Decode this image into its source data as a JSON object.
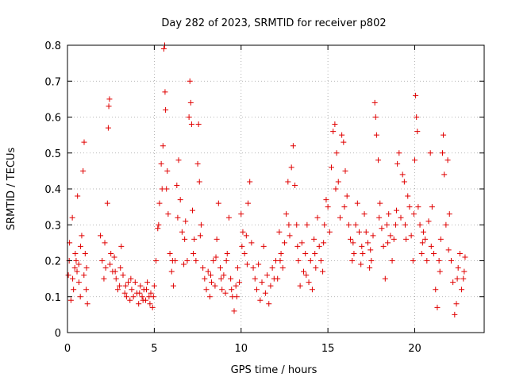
{
  "chart_data": {
    "type": "scatter",
    "title": "Day 282 of 2023, SRMTID for receiver p802",
    "xlabel": "GPS time / hours",
    "ylabel": "SRMTID / TECUs",
    "xlim": [
      0,
      24
    ],
    "ylim": [
      0,
      0.8
    ],
    "x_ticks": [
      0,
      5,
      10,
      15,
      20
    ],
    "x_tick_labels": [
      "0",
      "5",
      "10",
      "15",
      "20"
    ],
    "y_ticks": [
      0,
      0.1,
      0.2,
      0.3,
      0.4,
      0.5,
      0.6,
      0.7,
      0.8
    ],
    "y_tick_labels": [
      "0",
      "0.1",
      "0.2",
      "0.3",
      "0.4",
      "0.5",
      "0.6",
      "0.7",
      "0.8"
    ],
    "grid": true,
    "marker": "+",
    "series_color": "#e00000",
    "series": [
      {
        "name": "SRMTID",
        "points": [
          [
            0.05,
            0.16
          ],
          [
            0.12,
            0.25
          ],
          [
            0.2,
            0.09
          ],
          [
            0.28,
            0.32
          ],
          [
            0.35,
            0.12
          ],
          [
            0.42,
            0.18
          ],
          [
            0.5,
            0.2
          ],
          [
            0.58,
            0.38
          ],
          [
            0.66,
            0.14
          ],
          [
            0.74,
            0.1
          ],
          [
            0.82,
            0.27
          ],
          [
            0.9,
            0.45
          ],
          [
            0.96,
            0.53
          ],
          [
            1.02,
            0.22
          ],
          [
            1.08,
            0.12
          ],
          [
            1.15,
            0.08
          ],
          [
            0.1,
            0.2
          ],
          [
            0.3,
            0.15
          ],
          [
            0.55,
            0.17
          ],
          [
            0.75,
            0.24
          ],
          [
            0.95,
            0.16
          ],
          [
            1.1,
            0.18
          ],
          [
            0.45,
            0.22
          ],
          [
            0.65,
            0.19
          ],
          [
            1.9,
            0.27
          ],
          [
            2.0,
            0.2
          ],
          [
            2.1,
            0.15
          ],
          [
            2.2,
            0.18
          ],
          [
            2.3,
            0.36
          ],
          [
            2.35,
            0.57
          ],
          [
            2.38,
            0.63
          ],
          [
            2.42,
            0.65
          ],
          [
            2.5,
            0.22
          ],
          [
            2.6,
            0.17
          ],
          [
            2.7,
            0.21
          ],
          [
            2.8,
            0.15
          ],
          [
            2.9,
            0.12
          ],
          [
            3.0,
            0.13
          ],
          [
            3.1,
            0.24
          ],
          [
            3.2,
            0.16
          ],
          [
            3.3,
            0.11
          ],
          [
            3.4,
            0.1
          ],
          [
            3.5,
            0.14
          ],
          [
            3.6,
            0.09
          ],
          [
            3.7,
            0.12
          ],
          [
            3.8,
            0.1
          ],
          [
            3.9,
            0.14
          ],
          [
            2.15,
            0.25
          ],
          [
            2.45,
            0.19
          ],
          [
            2.75,
            0.17
          ],
          [
            3.05,
            0.18
          ],
          [
            3.35,
            0.13
          ],
          [
            3.65,
            0.15
          ],
          [
            4.0,
            0.11
          ],
          [
            4.1,
            0.08
          ],
          [
            4.2,
            0.13
          ],
          [
            4.3,
            0.1
          ],
          [
            4.4,
            0.12
          ],
          [
            4.5,
            0.09
          ],
          [
            4.6,
            0.14
          ],
          [
            4.7,
            0.1
          ],
          [
            4.8,
            0.11
          ],
          [
            4.9,
            0.07
          ],
          [
            5.0,
            0.13
          ],
          [
            4.15,
            0.11
          ],
          [
            4.35,
            0.09
          ],
          [
            4.55,
            0.12
          ],
          [
            4.75,
            0.08
          ],
          [
            4.95,
            0.1
          ],
          [
            5.1,
            0.2
          ],
          [
            5.2,
            0.29
          ],
          [
            5.3,
            0.36
          ],
          [
            5.4,
            0.47
          ],
          [
            5.5,
            0.52
          ],
          [
            5.55,
            0.79
          ],
          [
            5.6,
            0.8
          ],
          [
            5.62,
            0.67
          ],
          [
            5.65,
            0.62
          ],
          [
            5.7,
            0.4
          ],
          [
            5.8,
            0.33
          ],
          [
            5.9,
            0.22
          ],
          [
            6.0,
            0.17
          ],
          [
            6.1,
            0.13
          ],
          [
            6.2,
            0.2
          ],
          [
            6.3,
            0.41
          ],
          [
            6.4,
            0.48
          ],
          [
            6.5,
            0.37
          ],
          [
            6.6,
            0.28
          ],
          [
            6.7,
            0.19
          ],
          [
            6.8,
            0.31
          ],
          [
            6.9,
            0.2
          ],
          [
            7.0,
            0.6
          ],
          [
            7.05,
            0.7
          ],
          [
            7.1,
            0.64
          ],
          [
            7.15,
            0.58
          ],
          [
            7.2,
            0.34
          ],
          [
            7.3,
            0.26
          ],
          [
            7.4,
            0.2
          ],
          [
            7.5,
            0.47
          ],
          [
            7.55,
            0.58
          ],
          [
            7.6,
            0.42
          ],
          [
            7.7,
            0.3
          ],
          [
            7.8,
            0.18
          ],
          [
            7.9,
            0.15
          ],
          [
            5.25,
            0.3
          ],
          [
            5.45,
            0.4
          ],
          [
            5.75,
            0.45
          ],
          [
            6.05,
            0.2
          ],
          [
            6.35,
            0.32
          ],
          [
            6.75,
            0.26
          ],
          [
            7.25,
            0.22
          ],
          [
            7.65,
            0.27
          ],
          [
            8.0,
            0.12
          ],
          [
            8.1,
            0.17
          ],
          [
            8.2,
            0.1
          ],
          [
            8.3,
            0.14
          ],
          [
            8.4,
            0.2
          ],
          [
            8.5,
            0.13
          ],
          [
            8.6,
            0.26
          ],
          [
            8.7,
            0.36
          ],
          [
            8.8,
            0.18
          ],
          [
            8.9,
            0.12
          ],
          [
            9.0,
            0.16
          ],
          [
            9.1,
            0.11
          ],
          [
            9.2,
            0.22
          ],
          [
            9.3,
            0.32
          ],
          [
            9.4,
            0.15
          ],
          [
            9.5,
            0.1
          ],
          [
            9.6,
            0.06
          ],
          [
            9.7,
            0.13
          ],
          [
            9.8,
            0.18
          ],
          [
            9.9,
            0.14
          ],
          [
            10.0,
            0.33
          ],
          [
            10.1,
            0.28
          ],
          [
            10.2,
            0.22
          ],
          [
            10.3,
            0.27
          ],
          [
            10.4,
            0.36
          ],
          [
            10.5,
            0.42
          ],
          [
            10.6,
            0.25
          ],
          [
            10.7,
            0.18
          ],
          [
            8.25,
            0.16
          ],
          [
            8.55,
            0.21
          ],
          [
            8.85,
            0.15
          ],
          [
            9.15,
            0.2
          ],
          [
            9.45,
            0.12
          ],
          [
            9.75,
            0.1
          ],
          [
            10.05,
            0.24
          ],
          [
            10.35,
            0.19
          ],
          [
            10.8,
            0.15
          ],
          [
            10.9,
            0.12
          ],
          [
            11.0,
            0.19
          ],
          [
            11.1,
            0.09
          ],
          [
            11.2,
            0.14
          ],
          [
            11.3,
            0.24
          ],
          [
            11.4,
            0.11
          ],
          [
            11.5,
            0.16
          ],
          [
            11.6,
            0.08
          ],
          [
            11.7,
            0.13
          ],
          [
            11.8,
            0.18
          ],
          [
            11.9,
            0.15
          ],
          [
            12.0,
            0.2
          ],
          [
            12.1,
            0.15
          ],
          [
            12.2,
            0.28
          ],
          [
            12.3,
            0.22
          ],
          [
            12.4,
            0.18
          ],
          [
            12.5,
            0.25
          ],
          [
            12.6,
            0.33
          ],
          [
            12.7,
            0.42
          ],
          [
            12.8,
            0.27
          ],
          [
            12.9,
            0.46
          ],
          [
            13.0,
            0.52
          ],
          [
            13.1,
            0.41
          ],
          [
            13.2,
            0.3
          ],
          [
            13.3,
            0.2
          ],
          [
            13.4,
            0.13
          ],
          [
            13.5,
            0.25
          ],
          [
            13.6,
            0.17
          ],
          [
            13.7,
            0.22
          ],
          [
            13.8,
            0.3
          ],
          [
            13.9,
            0.14
          ],
          [
            14.0,
            0.2
          ],
          [
            14.1,
            0.12
          ],
          [
            14.2,
            0.26
          ],
          [
            14.3,
            0.18
          ],
          [
            14.4,
            0.32
          ],
          [
            14.5,
            0.24
          ],
          [
            14.6,
            0.2
          ],
          [
            14.7,
            0.17
          ],
          [
            14.8,
            0.3
          ],
          [
            14.9,
            0.37
          ],
          [
            12.25,
            0.2
          ],
          [
            12.75,
            0.3
          ],
          [
            13.25,
            0.24
          ],
          [
            13.75,
            0.16
          ],
          [
            14.25,
            0.22
          ],
          [
            14.75,
            0.25
          ],
          [
            15.0,
            0.35
          ],
          [
            15.1,
            0.28
          ],
          [
            15.2,
            0.46
          ],
          [
            15.3,
            0.56
          ],
          [
            15.4,
            0.58
          ],
          [
            15.5,
            0.5
          ],
          [
            15.6,
            0.42
          ],
          [
            15.7,
            0.32
          ],
          [
            15.8,
            0.55
          ],
          [
            15.9,
            0.53
          ],
          [
            16.0,
            0.45
          ],
          [
            16.1,
            0.38
          ],
          [
            16.2,
            0.3
          ],
          [
            16.3,
            0.26
          ],
          [
            16.4,
            0.2
          ],
          [
            16.5,
            0.22
          ],
          [
            16.6,
            0.3
          ],
          [
            16.7,
            0.36
          ],
          [
            16.8,
            0.28
          ],
          [
            16.9,
            0.19
          ],
          [
            17.0,
            0.22
          ],
          [
            17.1,
            0.33
          ],
          [
            17.2,
            0.28
          ],
          [
            17.3,
            0.25
          ],
          [
            17.4,
            0.18
          ],
          [
            17.5,
            0.2
          ],
          [
            17.6,
            0.27
          ],
          [
            17.7,
            0.64
          ],
          [
            17.75,
            0.6
          ],
          [
            17.8,
            0.55
          ],
          [
            17.9,
            0.48
          ],
          [
            18.0,
            0.36
          ],
          [
            18.1,
            0.29
          ],
          [
            18.2,
            0.24
          ],
          [
            18.3,
            0.15
          ],
          [
            18.4,
            0.3
          ],
          [
            18.5,
            0.33
          ],
          [
            18.6,
            0.27
          ],
          [
            18.7,
            0.2
          ],
          [
            18.8,
            0.26
          ],
          [
            18.9,
            0.3
          ],
          [
            19.0,
            0.47
          ],
          [
            19.1,
            0.5
          ],
          [
            19.2,
            0.32
          ],
          [
            19.3,
            0.44
          ],
          [
            19.4,
            0.42
          ],
          [
            19.5,
            0.26
          ],
          [
            19.6,
            0.38
          ],
          [
            19.7,
            0.35
          ],
          [
            19.8,
            0.27
          ],
          [
            19.9,
            0.2
          ],
          [
            20.0,
            0.48
          ],
          [
            20.05,
            0.66
          ],
          [
            20.1,
            0.6
          ],
          [
            20.15,
            0.56
          ],
          [
            20.2,
            0.35
          ],
          [
            20.3,
            0.3
          ],
          [
            20.4,
            0.22
          ],
          [
            20.5,
            0.28
          ],
          [
            20.6,
            0.26
          ],
          [
            20.7,
            0.2
          ],
          [
            20.8,
            0.31
          ],
          [
            20.9,
            0.5
          ],
          [
            21.0,
            0.35
          ],
          [
            21.1,
            0.22
          ],
          [
            21.2,
            0.12
          ],
          [
            21.3,
            0.07
          ],
          [
            21.4,
            0.2
          ],
          [
            21.5,
            0.26
          ],
          [
            21.6,
            0.5
          ],
          [
            21.65,
            0.55
          ],
          [
            21.7,
            0.44
          ],
          [
            21.8,
            0.3
          ],
          [
            21.9,
            0.48
          ],
          [
            22.0,
            0.33
          ],
          [
            22.1,
            0.2
          ],
          [
            22.2,
            0.14
          ],
          [
            22.3,
            0.05
          ],
          [
            22.4,
            0.08
          ],
          [
            22.5,
            0.18
          ],
          [
            22.6,
            0.22
          ],
          [
            22.7,
            0.12
          ],
          [
            22.8,
            0.15
          ],
          [
            22.9,
            0.21
          ],
          [
            15.45,
            0.4
          ],
          [
            15.95,
            0.35
          ],
          [
            16.45,
            0.25
          ],
          [
            16.95,
            0.24
          ],
          [
            17.45,
            0.23
          ],
          [
            17.95,
            0.32
          ],
          [
            18.45,
            0.25
          ],
          [
            18.95,
            0.34
          ],
          [
            19.45,
            0.3
          ],
          [
            19.95,
            0.33
          ],
          [
            20.45,
            0.25
          ],
          [
            20.95,
            0.24
          ],
          [
            21.45,
            0.17
          ],
          [
            21.95,
            0.23
          ],
          [
            22.45,
            0.15
          ],
          [
            22.85,
            0.17
          ]
        ]
      }
    ]
  }
}
